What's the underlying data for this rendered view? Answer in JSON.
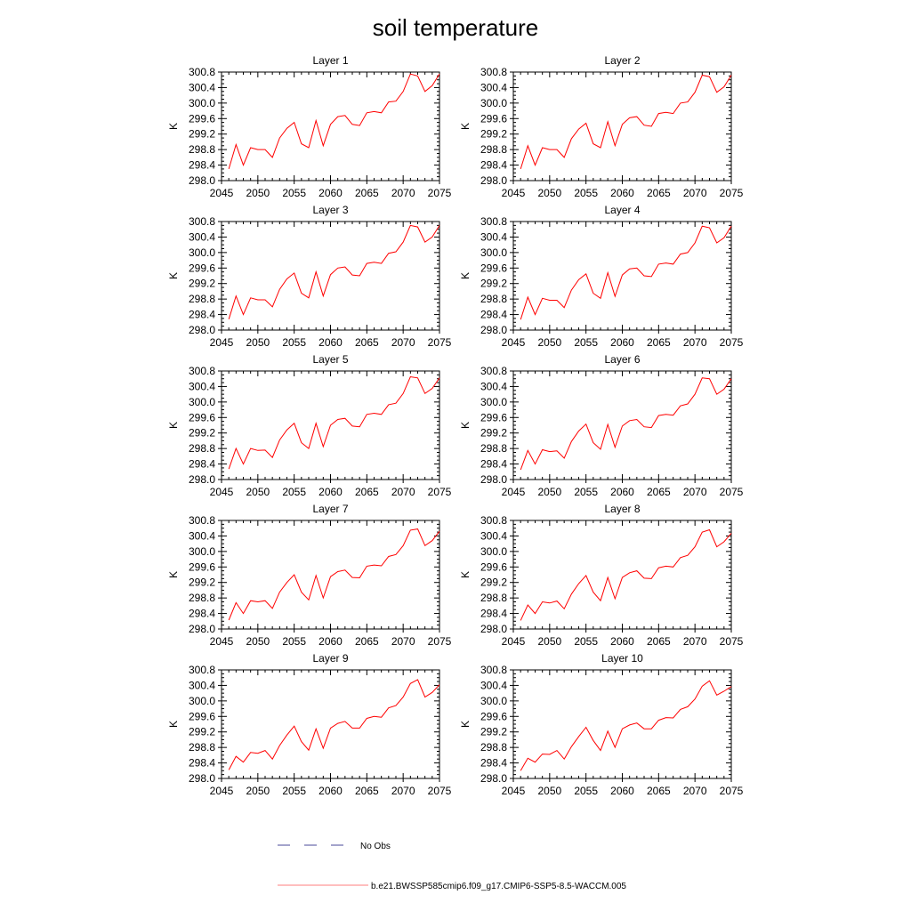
{
  "title": "soil temperature",
  "legend": {
    "obs_label": "No Obs",
    "obs_color": "#4a4a9a",
    "model_label": "b.e21.BWSSP585cmip6.f09_g17.CMIP6-SSP5-8.5-WACCM.005",
    "model_color": "#ff0000"
  },
  "chart_data": [
    {
      "type": "line",
      "title": "Layer 1",
      "xlabel": "",
      "ylabel": "K",
      "xlim": [
        2045,
        2075
      ],
      "ylim": [
        298.0,
        300.8
      ],
      "xticks": [
        "2045",
        "2050",
        "2055",
        "2060",
        "2065",
        "2070",
        "2075"
      ],
      "yticks": [
        "298.0",
        "298.4",
        "298.8",
        "299.2",
        "299.6",
        "300.0",
        "300.4",
        "300.8"
      ],
      "x": [
        2046,
        2047,
        2048,
        2049,
        2050,
        2051,
        2052,
        2053,
        2054,
        2055,
        2056,
        2057,
        2058,
        2059,
        2060,
        2061,
        2062,
        2063,
        2064,
        2065,
        2066,
        2067,
        2068,
        2069,
        2070,
        2071,
        2072,
        2073,
        2074,
        2075
      ],
      "series": [
        {
          "name": "b.e21.BWSSP585cmip6.f09_g17.CMIP6-SSP5-8.5-WACCM.005",
          "values": [
            298.3,
            298.93,
            298.4,
            298.85,
            298.8,
            298.8,
            298.6,
            299.1,
            299.35,
            299.5,
            298.95,
            298.85,
            299.55,
            298.9,
            299.45,
            299.65,
            299.68,
            299.45,
            299.42,
            299.75,
            299.78,
            299.75,
            300.03,
            300.05,
            300.3,
            300.75,
            300.7,
            300.3,
            300.45,
            300.75
          ]
        }
      ]
    },
    {
      "type": "line",
      "title": "Layer 2",
      "xlabel": "",
      "ylabel": "K",
      "xlim": [
        2045,
        2075
      ],
      "ylim": [
        298.0,
        300.8
      ],
      "xticks": [
        "2045",
        "2050",
        "2055",
        "2060",
        "2065",
        "2070",
        "2075"
      ],
      "yticks": [
        "298.0",
        "298.4",
        "298.8",
        "299.2",
        "299.6",
        "300.0",
        "300.4",
        "300.8"
      ],
      "x": [
        2046,
        2047,
        2048,
        2049,
        2050,
        2051,
        2052,
        2053,
        2054,
        2055,
        2056,
        2057,
        2058,
        2059,
        2060,
        2061,
        2062,
        2063,
        2064,
        2065,
        2066,
        2067,
        2068,
        2069,
        2070,
        2071,
        2072,
        2073,
        2074,
        2075
      ],
      "series": [
        {
          "name": "b.e21.BWSSP585cmip6.f09_g17.CMIP6-SSP5-8.5-WACCM.005",
          "values": [
            298.3,
            298.9,
            298.4,
            298.85,
            298.8,
            298.8,
            298.6,
            299.08,
            299.33,
            299.48,
            298.95,
            298.85,
            299.52,
            298.9,
            299.45,
            299.62,
            299.65,
            299.43,
            299.4,
            299.73,
            299.76,
            299.73,
            300.0,
            300.03,
            300.28,
            300.72,
            300.68,
            300.28,
            300.42,
            300.72
          ]
        }
      ]
    },
    {
      "type": "line",
      "title": "Layer 3",
      "xlabel": "",
      "ylabel": "K",
      "xlim": [
        2045,
        2075
      ],
      "ylim": [
        298.0,
        300.8
      ],
      "xticks": [
        "2045",
        "2050",
        "2055",
        "2060",
        "2065",
        "2070",
        "2075"
      ],
      "yticks": [
        "298.0",
        "298.4",
        "298.8",
        "299.2",
        "299.6",
        "300.0",
        "300.4",
        "300.8"
      ],
      "x": [
        2046,
        2047,
        2048,
        2049,
        2050,
        2051,
        2052,
        2053,
        2054,
        2055,
        2056,
        2057,
        2058,
        2059,
        2060,
        2061,
        2062,
        2063,
        2064,
        2065,
        2066,
        2067,
        2068,
        2069,
        2070,
        2071,
        2072,
        2073,
        2074,
        2075
      ],
      "series": [
        {
          "name": "b.e21.BWSSP585cmip6.f09_g17.CMIP6-SSP5-8.5-WACCM.005",
          "values": [
            298.28,
            298.88,
            298.4,
            298.83,
            298.78,
            298.78,
            298.6,
            299.05,
            299.32,
            299.47,
            298.95,
            298.83,
            299.5,
            298.88,
            299.43,
            299.6,
            299.63,
            299.42,
            299.4,
            299.72,
            299.75,
            299.72,
            299.98,
            300.02,
            300.27,
            300.7,
            300.66,
            300.27,
            300.4,
            300.7
          ]
        }
      ]
    },
    {
      "type": "line",
      "title": "Layer 4",
      "xlabel": "",
      "ylabel": "K",
      "xlim": [
        2045,
        2075
      ],
      "ylim": [
        298.0,
        300.8
      ],
      "xticks": [
        "2045",
        "2050",
        "2055",
        "2060",
        "2065",
        "2070",
        "2075"
      ],
      "yticks": [
        "298.0",
        "298.4",
        "298.8",
        "299.2",
        "299.6",
        "300.0",
        "300.4",
        "300.8"
      ],
      "x": [
        2046,
        2047,
        2048,
        2049,
        2050,
        2051,
        2052,
        2053,
        2054,
        2055,
        2056,
        2057,
        2058,
        2059,
        2060,
        2061,
        2062,
        2063,
        2064,
        2065,
        2066,
        2067,
        2068,
        2069,
        2070,
        2071,
        2072,
        2073,
        2074,
        2075
      ],
      "series": [
        {
          "name": "b.e21.BWSSP585cmip6.f09_g17.CMIP6-SSP5-8.5-WACCM.005",
          "values": [
            298.27,
            298.85,
            298.4,
            298.82,
            298.77,
            298.77,
            298.58,
            299.03,
            299.3,
            299.45,
            298.95,
            298.82,
            299.48,
            298.87,
            299.42,
            299.58,
            299.6,
            299.4,
            299.38,
            299.7,
            299.73,
            299.7,
            299.96,
            300.0,
            300.25,
            300.68,
            300.64,
            300.25,
            300.38,
            300.68
          ]
        }
      ]
    },
    {
      "type": "line",
      "title": "Layer 5",
      "xlabel": "",
      "ylabel": "K",
      "xlim": [
        2045,
        2075
      ],
      "ylim": [
        298.0,
        300.8
      ],
      "xticks": [
        "2045",
        "2050",
        "2055",
        "2060",
        "2065",
        "2070",
        "2075"
      ],
      "yticks": [
        "298.0",
        "298.4",
        "298.8",
        "299.2",
        "299.6",
        "300.0",
        "300.4",
        "300.8"
      ],
      "x": [
        2046,
        2047,
        2048,
        2049,
        2050,
        2051,
        2052,
        2053,
        2054,
        2055,
        2056,
        2057,
        2058,
        2059,
        2060,
        2061,
        2062,
        2063,
        2064,
        2065,
        2066,
        2067,
        2068,
        2069,
        2070,
        2071,
        2072,
        2073,
        2074,
        2075
      ],
      "series": [
        {
          "name": "b.e21.BWSSP585cmip6.f09_g17.CMIP6-SSP5-8.5-WACCM.005",
          "values": [
            298.27,
            298.8,
            298.4,
            298.8,
            298.75,
            298.76,
            298.57,
            299.02,
            299.28,
            299.45,
            298.95,
            298.8,
            299.45,
            298.85,
            299.4,
            299.55,
            299.58,
            299.38,
            299.36,
            299.68,
            299.71,
            299.68,
            299.93,
            299.97,
            300.22,
            300.65,
            300.62,
            300.22,
            300.35,
            300.62
          ]
        }
      ]
    },
    {
      "type": "line",
      "title": "Layer 6",
      "xlabel": "",
      "ylabel": "K",
      "xlim": [
        2045,
        2075
      ],
      "ylim": [
        298.0,
        300.8
      ],
      "xticks": [
        "2045",
        "2050",
        "2055",
        "2060",
        "2065",
        "2070",
        "2075"
      ],
      "yticks": [
        "298.0",
        "298.4",
        "298.8",
        "299.2",
        "299.6",
        "300.0",
        "300.4",
        "300.8"
      ],
      "x": [
        2046,
        2047,
        2048,
        2049,
        2050,
        2051,
        2052,
        2053,
        2054,
        2055,
        2056,
        2057,
        2058,
        2059,
        2060,
        2061,
        2062,
        2063,
        2064,
        2065,
        2066,
        2067,
        2068,
        2069,
        2070,
        2071,
        2072,
        2073,
        2074,
        2075
      ],
      "series": [
        {
          "name": "b.e21.BWSSP585cmip6.f09_g17.CMIP6-SSP5-8.5-WACCM.005",
          "values": [
            298.25,
            298.75,
            298.4,
            298.77,
            298.72,
            298.74,
            298.55,
            298.98,
            299.25,
            299.43,
            298.95,
            298.78,
            299.42,
            298.83,
            299.38,
            299.52,
            299.55,
            299.36,
            299.34,
            299.65,
            299.68,
            299.66,
            299.9,
            299.95,
            300.2,
            300.62,
            300.6,
            300.2,
            300.33,
            300.6
          ]
        }
      ]
    },
    {
      "type": "line",
      "title": "Layer 7",
      "xlabel": "",
      "ylabel": "K",
      "xlim": [
        2045,
        2075
      ],
      "ylim": [
        298.0,
        300.8
      ],
      "xticks": [
        "2045",
        "2050",
        "2055",
        "2060",
        "2065",
        "2070",
        "2075"
      ],
      "yticks": [
        "298.0",
        "298.4",
        "298.8",
        "299.2",
        "299.6",
        "300.0",
        "300.4",
        "300.8"
      ],
      "x": [
        2046,
        2047,
        2048,
        2049,
        2050,
        2051,
        2052,
        2053,
        2054,
        2055,
        2056,
        2057,
        2058,
        2059,
        2060,
        2061,
        2062,
        2063,
        2064,
        2065,
        2066,
        2067,
        2068,
        2069,
        2070,
        2071,
        2072,
        2073,
        2074,
        2075
      ],
      "series": [
        {
          "name": "b.e21.BWSSP585cmip6.f09_g17.CMIP6-SSP5-8.5-WACCM.005",
          "values": [
            298.23,
            298.68,
            298.4,
            298.73,
            298.7,
            298.73,
            298.53,
            298.95,
            299.2,
            299.4,
            298.95,
            298.75,
            299.38,
            298.8,
            299.35,
            299.48,
            299.52,
            299.33,
            299.32,
            299.62,
            299.65,
            299.63,
            299.87,
            299.92,
            300.15,
            300.55,
            300.58,
            300.15,
            300.28,
            300.52
          ]
        }
      ]
    },
    {
      "type": "line",
      "title": "Layer 8",
      "xlabel": "",
      "ylabel": "K",
      "xlim": [
        2045,
        2075
      ],
      "ylim": [
        298.0,
        300.8
      ],
      "xticks": [
        "2045",
        "2050",
        "2055",
        "2060",
        "2065",
        "2070",
        "2075"
      ],
      "yticks": [
        "298.0",
        "298.4",
        "298.8",
        "299.2",
        "299.6",
        "300.0",
        "300.4",
        "300.8"
      ],
      "x": [
        2046,
        2047,
        2048,
        2049,
        2050,
        2051,
        2052,
        2053,
        2054,
        2055,
        2056,
        2057,
        2058,
        2059,
        2060,
        2061,
        2062,
        2063,
        2064,
        2065,
        2066,
        2067,
        2068,
        2069,
        2070,
        2071,
        2072,
        2073,
        2074,
        2075
      ],
      "series": [
        {
          "name": "b.e21.BWSSP585cmip6.f09_g17.CMIP6-SSP5-8.5-WACCM.005",
          "values": [
            298.22,
            298.62,
            298.4,
            298.7,
            298.67,
            298.72,
            298.52,
            298.9,
            299.17,
            299.38,
            298.95,
            298.73,
            299.33,
            298.78,
            299.33,
            299.45,
            299.5,
            299.31,
            299.3,
            299.58,
            299.62,
            299.6,
            299.84,
            299.9,
            300.12,
            300.5,
            300.56,
            300.12,
            300.25,
            300.47
          ]
        }
      ]
    },
    {
      "type": "line",
      "title": "Layer 9",
      "xlabel": "",
      "ylabel": "K",
      "xlim": [
        2045,
        2075
      ],
      "ylim": [
        298.0,
        300.8
      ],
      "xticks": [
        "2045",
        "2050",
        "2055",
        "2060",
        "2065",
        "2070",
        "2075"
      ],
      "yticks": [
        "298.0",
        "298.4",
        "298.8",
        "299.2",
        "299.6",
        "300.0",
        "300.4",
        "300.8"
      ],
      "x": [
        2046,
        2047,
        2048,
        2049,
        2050,
        2051,
        2052,
        2053,
        2054,
        2055,
        2056,
        2057,
        2058,
        2059,
        2060,
        2061,
        2062,
        2063,
        2064,
        2065,
        2066,
        2067,
        2068,
        2069,
        2070,
        2071,
        2072,
        2073,
        2074,
        2075
      ],
      "series": [
        {
          "name": "b.e21.BWSSP585cmip6.f09_g17.CMIP6-SSP5-8.5-WACCM.005",
          "values": [
            298.22,
            298.57,
            298.42,
            298.67,
            298.65,
            298.72,
            298.5,
            298.85,
            299.12,
            299.35,
            298.95,
            298.73,
            299.28,
            298.78,
            299.3,
            299.42,
            299.47,
            299.3,
            299.3,
            299.55,
            299.6,
            299.58,
            299.82,
            299.88,
            300.1,
            300.45,
            300.55,
            300.1,
            300.22,
            300.42
          ]
        }
      ]
    },
    {
      "type": "line",
      "title": "Layer 10",
      "xlabel": "",
      "ylabel": "K",
      "xlim": [
        2045,
        2075
      ],
      "ylim": [
        298.0,
        300.8
      ],
      "xticks": [
        "2045",
        "2050",
        "2055",
        "2060",
        "2065",
        "2070",
        "2075"
      ],
      "yticks": [
        "298.0",
        "298.4",
        "298.8",
        "299.2",
        "299.6",
        "300.0",
        "300.4",
        "300.8"
      ],
      "x": [
        2046,
        2047,
        2048,
        2049,
        2050,
        2051,
        2052,
        2053,
        2054,
        2055,
        2056,
        2057,
        2058,
        2059,
        2060,
        2061,
        2062,
        2063,
        2064,
        2065,
        2066,
        2067,
        2068,
        2069,
        2070,
        2071,
        2072,
        2073,
        2074,
        2075
      ],
      "series": [
        {
          "name": "b.e21.BWSSP585cmip6.f09_g17.CMIP6-SSP5-8.5-WACCM.005",
          "values": [
            298.2,
            298.52,
            298.42,
            298.63,
            298.62,
            298.72,
            298.5,
            298.82,
            299.08,
            299.32,
            298.98,
            298.72,
            299.22,
            298.8,
            299.28,
            299.38,
            299.43,
            299.28,
            299.28,
            299.5,
            299.57,
            299.56,
            299.78,
            299.85,
            300.05,
            300.38,
            300.52,
            300.15,
            300.25,
            300.37
          ]
        }
      ]
    }
  ]
}
